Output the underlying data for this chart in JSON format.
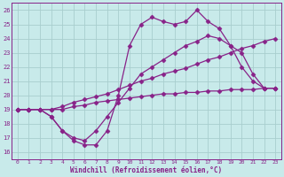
{
  "bg_color": "#c8eaea",
  "grid_color": "#a8cece",
  "line_color": "#882288",
  "xlabel": "Windchill (Refroidissement éolien,°C)",
  "xlim": [
    -0.5,
    23.5
  ],
  "ylim": [
    15.5,
    26.5
  ],
  "yticks": [
    16,
    17,
    18,
    19,
    20,
    21,
    22,
    23,
    24,
    25,
    26
  ],
  "xticks": [
    0,
    1,
    2,
    3,
    4,
    5,
    6,
    7,
    8,
    9,
    10,
    11,
    12,
    13,
    14,
    15,
    16,
    17,
    18,
    19,
    20,
    21,
    22,
    23
  ],
  "line1_x": [
    0,
    1,
    2,
    3,
    4,
    5,
    6,
    7,
    8,
    9,
    10,
    11,
    12,
    13,
    14,
    15,
    16,
    17,
    18,
    19,
    20,
    21,
    22,
    23
  ],
  "line1_y": [
    19.0,
    19.0,
    19.0,
    19.0,
    19.0,
    19.2,
    19.3,
    19.5,
    19.6,
    19.7,
    19.8,
    19.9,
    20.0,
    20.1,
    20.1,
    20.2,
    20.2,
    20.3,
    20.3,
    20.4,
    20.4,
    20.4,
    20.5,
    20.5
  ],
  "line2_x": [
    0,
    1,
    2,
    3,
    4,
    5,
    6,
    7,
    8,
    9,
    10,
    11,
    12,
    13,
    14,
    15,
    16,
    17,
    18,
    19,
    20,
    21,
    22,
    23
  ],
  "line2_y": [
    19.0,
    19.0,
    19.0,
    19.0,
    19.2,
    19.5,
    19.7,
    19.9,
    20.1,
    20.4,
    20.7,
    21.0,
    21.2,
    21.5,
    21.7,
    21.9,
    22.2,
    22.5,
    22.7,
    23.0,
    23.3,
    23.5,
    23.8,
    24.0
  ],
  "line3_x": [
    0,
    1,
    2,
    3,
    4,
    5,
    6,
    7,
    8,
    9,
    10,
    11,
    12,
    13,
    14,
    15,
    16,
    17,
    18,
    19,
    20,
    21,
    22,
    23
  ],
  "line3_y": [
    19.0,
    19.0,
    19.0,
    18.5,
    17.5,
    17.0,
    16.8,
    17.5,
    18.5,
    19.5,
    20.5,
    21.5,
    22.0,
    22.5,
    23.0,
    23.5,
    23.8,
    24.2,
    24.0,
    23.5,
    23.0,
    21.5,
    20.5,
    20.5
  ],
  "line4_x": [
    0,
    1,
    2,
    3,
    4,
    5,
    6,
    7,
    8,
    9,
    10,
    11,
    12,
    13,
    14,
    15,
    16,
    17,
    18,
    19,
    20,
    21,
    22,
    23
  ],
  "line4_y": [
    19.0,
    19.0,
    19.0,
    18.5,
    17.5,
    16.8,
    16.5,
    16.5,
    17.5,
    20.0,
    23.5,
    25.0,
    25.5,
    25.2,
    25.0,
    25.2,
    26.0,
    25.2,
    24.7,
    23.5,
    22.0,
    21.0,
    20.5,
    20.5
  ],
  "marker": "D",
  "markersize": 2.5,
  "linewidth": 0.9
}
